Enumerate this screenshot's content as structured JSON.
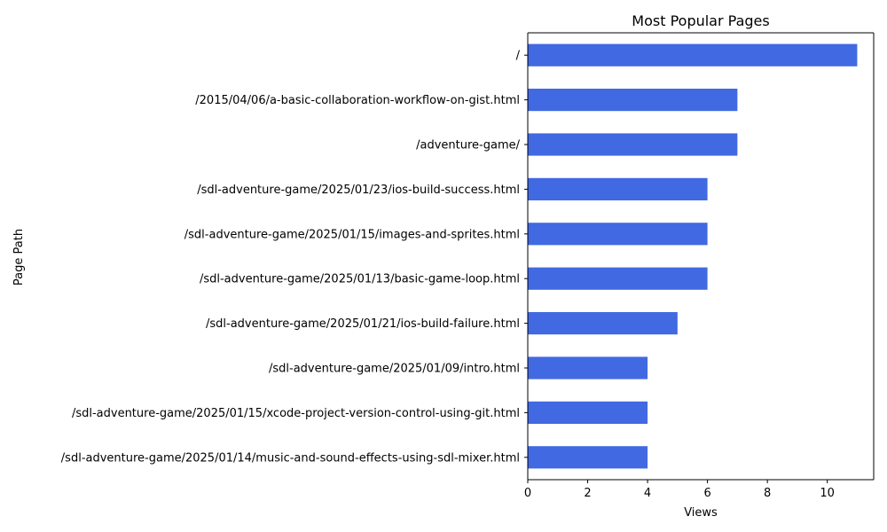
{
  "chart_data": {
    "type": "bar",
    "orientation": "horizontal",
    "title": "Most Popular Pages",
    "xlabel": "Views",
    "ylabel": "Page Path",
    "xlim": [
      0,
      11.55
    ],
    "xticks": [
      "0",
      "2",
      "4",
      "6",
      "8",
      "10"
    ],
    "xtick_values": [
      0,
      2,
      4,
      6,
      8,
      10
    ],
    "categories": [
      "/",
      "/2015/04/06/a-basic-collaboration-workflow-on-gist.html",
      "/adventure-game/",
      "/sdl-adventure-game/2025/01/23/ios-build-success.html",
      "/sdl-adventure-game/2025/01/15/images-and-sprites.html",
      "/sdl-adventure-game/2025/01/13/basic-game-loop.html",
      "/sdl-adventure-game/2025/01/21/ios-build-failure.html",
      "/sdl-adventure-game/2025/01/09/intro.html",
      "/sdl-adventure-game/2025/01/15/xcode-project-version-control-using-git.html",
      "/sdl-adventure-game/2025/01/14/music-and-sound-effects-using-sdl-mixer.html"
    ],
    "values": [
      11,
      7,
      7,
      6,
      6,
      6,
      5,
      4,
      4,
      4
    ],
    "bar_color": "#4169e1",
    "grid": false,
    "legend": "none"
  }
}
